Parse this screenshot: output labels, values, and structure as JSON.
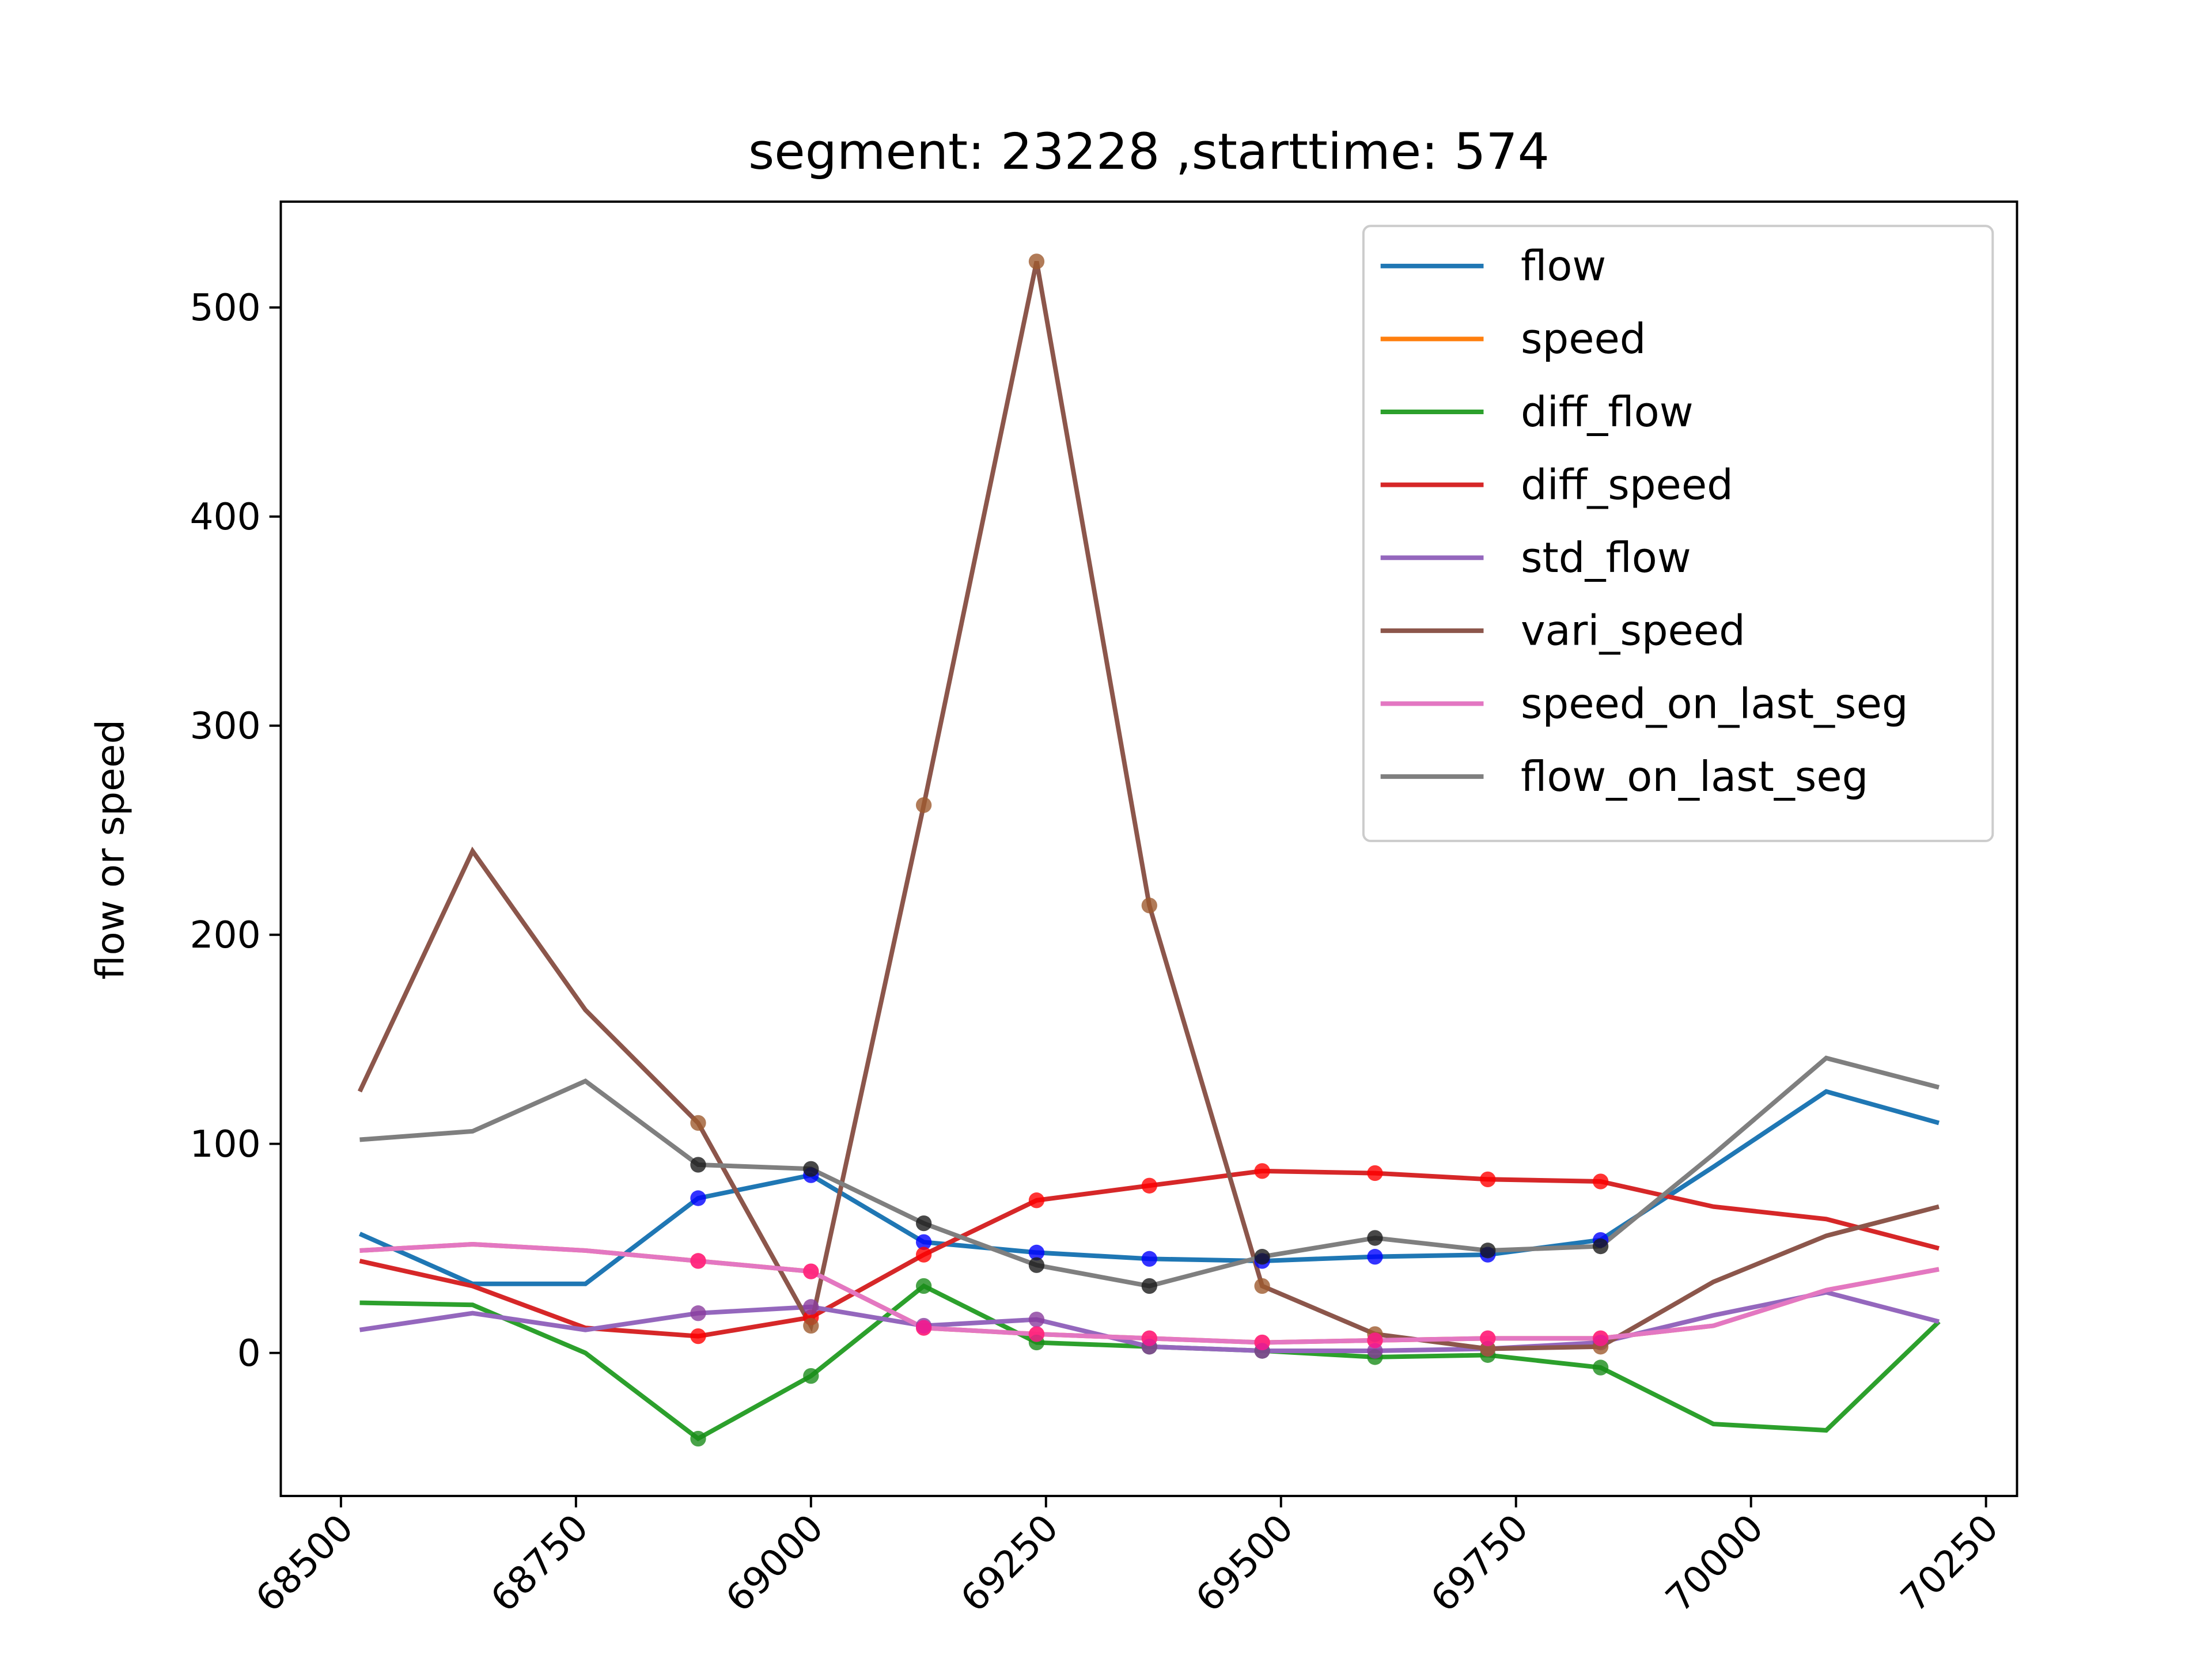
{
  "chart_data": {
    "type": "line",
    "title": "segment: 23228 ,starttime: 574",
    "y_label": "flow or speed",
    "x": [
      68520,
      68640,
      68760,
      68880,
      69000,
      69120,
      69240,
      69360,
      69480,
      69600,
      69720,
      69840,
      69960,
      70080,
      70200
    ],
    "xlim": [
      68436,
      70283
    ],
    "xticks": [
      68500,
      68750,
      69000,
      69250,
      69500,
      69750,
      70000,
      70250
    ],
    "ylim": [
      -68.4,
      550.6
    ],
    "yticks": [
      0,
      100,
      200,
      300,
      400,
      500
    ],
    "legend": "upper right",
    "marker_points": [
      3,
      4,
      5,
      6,
      7,
      8,
      9,
      10,
      11
    ],
    "series": [
      {
        "name": "flow",
        "color": "#1f77b4",
        "marker_color": "#0000ff",
        "values": [
          57,
          33,
          33,
          74,
          85,
          53,
          48,
          45,
          44,
          46,
          47,
          54,
          89,
          125,
          110
        ]
      },
      {
        "name": "speed",
        "color": "#ff7f0e",
        "marker_color": "#ff7f0e",
        "values": [
          49,
          52,
          49,
          44,
          39,
          12,
          9,
          7,
          5,
          6,
          7,
          7,
          13,
          30,
          40
        ]
      },
      {
        "name": "diff_flow",
        "color": "#2ca02c",
        "marker_color": "#1a8c1a",
        "values": [
          24,
          23,
          0,
          -41,
          -11,
          32,
          5,
          3,
          1,
          -2,
          -1,
          -7,
          -34,
          -37,
          15
        ]
      },
      {
        "name": "diff_speed",
        "color": "#d62728",
        "marker_color": "#ff0000",
        "values": [
          44,
          32,
          12,
          8,
          17,
          47,
          73,
          80,
          87,
          86,
          83,
          82,
          70,
          64,
          50
        ]
      },
      {
        "name": "std_flow",
        "color": "#9467bd",
        "marker_color": "#8a3c9e",
        "values": [
          11,
          19,
          11,
          19,
          22,
          13,
          16,
          3,
          1,
          1,
          2,
          5,
          18,
          29,
          15
        ]
      },
      {
        "name": "vari_speed",
        "color": "#8c564b",
        "marker_color": "#9e5a2e",
        "values": [
          125,
          240,
          164,
          110,
          13,
          262,
          522,
          214,
          32,
          9,
          2,
          3,
          34,
          56,
          70
        ]
      },
      {
        "name": "speed_on_last_seg",
        "color": "#e377c2",
        "marker_color": "#ff1493",
        "values": [
          49,
          52,
          49,
          44,
          39,
          12,
          9,
          7,
          5,
          6,
          7,
          7,
          13,
          30,
          40
        ]
      },
      {
        "name": "flow_on_last_seg",
        "color": "#7f7f7f",
        "marker_color": "#1a1a1a",
        "values": [
          102,
          106,
          130,
          90,
          88,
          62,
          42,
          32,
          46,
          55,
          49,
          51,
          95,
          141,
          127
        ]
      }
    ]
  }
}
